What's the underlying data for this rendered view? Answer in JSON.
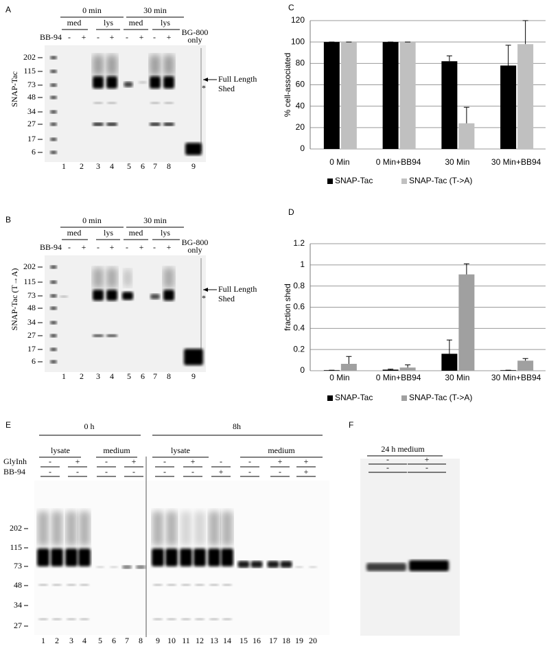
{
  "panel_a": {
    "label": "A",
    "ylabel": "SNAP-Tac",
    "times": [
      "0 min",
      "30 min"
    ],
    "fractions": [
      "med",
      "lys",
      "med",
      "lys"
    ],
    "treatment": "BB-94",
    "signs": [
      "-",
      "+",
      "-",
      "+",
      "-",
      "+",
      "-",
      "+"
    ],
    "control": [
      "BG-800",
      "only"
    ],
    "markers": [
      "202",
      "115",
      "73",
      "48",
      "34",
      "27",
      "17",
      "6"
    ],
    "lanes": [
      "1",
      "2",
      "3",
      "4",
      "5",
      "6",
      "7",
      "8",
      "9"
    ],
    "annotations": [
      "Full Length",
      "Shed",
      "*"
    ]
  },
  "panel_b": {
    "label": "B",
    "ylabel": "SNAP-Tac (T→A)",
    "times": [
      "0 min",
      "30 min"
    ],
    "fractions": [
      "med",
      "lys",
      "med",
      "lys"
    ],
    "treatment": "BB-94",
    "signs": [
      "-",
      "+",
      "-",
      "+",
      "-",
      "+",
      "-",
      "+"
    ],
    "control": [
      "BG-800",
      "only"
    ],
    "markers": [
      "202",
      "115",
      "73",
      "48",
      "34",
      "27",
      "17",
      "6"
    ],
    "lanes": [
      "1",
      "2",
      "3",
      "4",
      "5",
      "6",
      "7",
      "8",
      "9"
    ],
    "annotations": [
      "Full Length",
      "Shed",
      "*"
    ]
  },
  "panel_e": {
    "label": "E",
    "times": [
      "0 h",
      "8h"
    ],
    "fractions": [
      "lysate",
      "medium",
      "lysate",
      "medium"
    ],
    "rows": [
      {
        "name": "GlyInh",
        "signs": [
          "-",
          "+",
          "-",
          "+",
          "-",
          "+",
          "-",
          "-",
          "+",
          "+"
        ]
      },
      {
        "name": "BB-94",
        "signs": [
          "-",
          "-",
          "-",
          "-",
          "-",
          "-",
          "+",
          "-",
          "-",
          "+"
        ]
      }
    ],
    "markers": [
      "202",
      "115",
      "73",
      "48",
      "34",
      "27"
    ],
    "lanes": [
      "1",
      "2",
      "3",
      "4",
      "5",
      "6",
      "7",
      "8",
      "9",
      "10",
      "11",
      "12",
      "13",
      "14",
      "15",
      "16",
      "17",
      "18",
      "19",
      "20"
    ]
  },
  "panel_f": {
    "label": "F",
    "title": "24 h medium",
    "rows": [
      [
        "-",
        "+"
      ],
      [
        "-",
        "-"
      ]
    ]
  },
  "chart_data": [
    {
      "label": "C",
      "type": "bar",
      "ylabel": "% cell-associated",
      "categories": [
        "0 Min",
        "0 Min+BB94",
        "30 Min",
        "30 Min+BB94"
      ],
      "series": [
        {
          "name": "SNAP-Tac",
          "color": "#000000",
          "values": [
            100,
            100,
            82,
            78
          ],
          "errors": [
            0,
            0,
            5,
            19
          ]
        },
        {
          "name": "SNAP-Tac (T->A)",
          "color": "#c0c0c0",
          "values": [
            100,
            100,
            24,
            98
          ],
          "errors": [
            0,
            0,
            15,
            22
          ]
        }
      ],
      "ylim": [
        0,
        120
      ],
      "yticks": [
        0,
        20,
        40,
        60,
        80,
        100,
        120
      ],
      "grid": true,
      "legend": "bottom"
    },
    {
      "label": "D",
      "type": "bar",
      "ylabel": "fraction shed",
      "categories": [
        "0 Min",
        "0 Min+BB94",
        "30 Min",
        "30 Min+BB94"
      ],
      "series": [
        {
          "name": "SNAP-Tac",
          "color": "#000000",
          "values": [
            0.005,
            0.01,
            0.16,
            0.005
          ],
          "errors": [
            0,
            0.005,
            0.13,
            0
          ]
        },
        {
          "name": "SNAP-Tac (T->A)",
          "color": "#a0a0a0",
          "values": [
            0.065,
            0.03,
            0.91,
            0.095
          ],
          "errors": [
            0.07,
            0.025,
            0.1,
            0.02
          ]
        }
      ],
      "ylim": [
        0,
        1.2
      ],
      "yticks": [
        0,
        0.2,
        0.4,
        0.6,
        0.8,
        1,
        1.2
      ],
      "grid": true,
      "legend": "bottom"
    }
  ]
}
